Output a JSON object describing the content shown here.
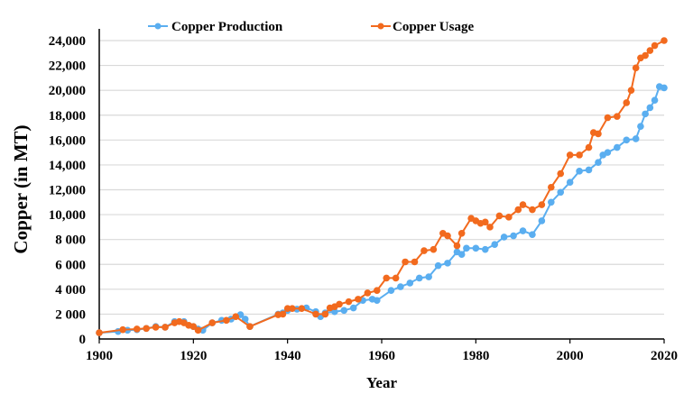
{
  "chart_data": {
    "type": "line",
    "title": "",
    "xlabel": "Year",
    "ylabel": "Copper (in MT)",
    "xlim": [
      1900,
      2020
    ],
    "ylim": [
      0,
      24000
    ],
    "grid": true,
    "legend_position": "top-center",
    "x_ticks": [
      "1900",
      "1920",
      "1940",
      "1960",
      "1980",
      "2000",
      "2020"
    ],
    "x_tick_values": [
      1900,
      1920,
      1940,
      1960,
      1980,
      2000,
      2020
    ],
    "y_ticks": [
      "0",
      "2 000",
      "4 000",
      "6 000",
      "8 000",
      "10,000",
      "12,000",
      "14,000",
      "16,000",
      "18,000",
      "20,000",
      "22,000",
      "24,000"
    ],
    "y_tick_values": [
      0,
      2000,
      4000,
      6000,
      8000,
      10000,
      12000,
      14000,
      16000,
      18000,
      20000,
      22000,
      24000
    ],
    "series": [
      {
        "name": "Copper Production",
        "color": "#5aaef0",
        "x": [
          1900,
          1904,
          1906,
          1908,
          1910,
          1912,
          1914,
          1916,
          1918,
          1920,
          1921,
          1922,
          1924,
          1926,
          1928,
          1930,
          1931,
          1932,
          1938,
          1939,
          1940,
          1942,
          1944,
          1946,
          1947,
          1948,
          1950,
          1952,
          1954,
          1956,
          1958,
          1959,
          1962,
          1964,
          1966,
          1968,
          1970,
          1972,
          1974,
          1976,
          1977,
          1978,
          1980,
          1982,
          1984,
          1986,
          1988,
          1990,
          1992,
          1994,
          1996,
          1998,
          2000,
          2002,
          2004,
          2006,
          2007,
          2008,
          2010,
          2012,
          2014,
          2015,
          2016,
          2017,
          2018,
          2019,
          2020
        ],
        "values": [
          500,
          600,
          700,
          750,
          850,
          1000,
          950,
          1400,
          1400,
          1000,
          800,
          700,
          1300,
          1500,
          1600,
          1950,
          1600,
          1000,
          2000,
          2100,
          2300,
          2400,
          2500,
          2200,
          1800,
          2100,
          2200,
          2300,
          2500,
          3100,
          3200,
          3100,
          3900,
          4200,
          4500,
          4900,
          5000,
          5900,
          6100,
          7000,
          6800,
          7300,
          7300,
          7200,
          7600,
          8200,
          8300,
          8700,
          8400,
          9500,
          11000,
          11800,
          12600,
          13500,
          13600,
          14200,
          14800,
          15000,
          15400,
          16000,
          16100,
          17100,
          18100,
          18600,
          19200,
          20300,
          20200
        ]
      },
      {
        "name": "Copper Usage",
        "color": "#f26a1e",
        "x": [
          1900,
          1905,
          1908,
          1910,
          1912,
          1914,
          1916,
          1917,
          1918,
          1919,
          1920,
          1921,
          1924,
          1927,
          1929,
          1932,
          1938,
          1939,
          1940,
          1941,
          1943,
          1946,
          1948,
          1949,
          1950,
          1951,
          1953,
          1955,
          1957,
          1959,
          1961,
          1963,
          1965,
          1967,
          1969,
          1971,
          1973,
          1974,
          1976,
          1977,
          1979,
          1980,
          1981,
          1982,
          1983,
          1985,
          1987,
          1989,
          1990,
          1992,
          1994,
          1996,
          1998,
          2000,
          2002,
          2004,
          2005,
          2006,
          2008,
          2010,
          2012,
          2013,
          2014,
          2015,
          2016,
          2017,
          2018,
          2020
        ],
        "values": [
          500,
          750,
          800,
          850,
          950,
          950,
          1300,
          1400,
          1300,
          1100,
          1000,
          700,
          1300,
          1500,
          1800,
          1000,
          1950,
          2000,
          2450,
          2450,
          2450,
          2000,
          2000,
          2500,
          2600,
          2800,
          3000,
          3200,
          3700,
          3900,
          4900,
          4900,
          6200,
          6200,
          7100,
          7200,
          8500,
          8300,
          7500,
          8500,
          9700,
          9500,
          9300,
          9400,
          9000,
          9900,
          9800,
          10400,
          10800,
          10400,
          10800,
          12200,
          13300,
          14800,
          14800,
          15400,
          16600,
          16500,
          17800,
          17900,
          19000,
          20000,
          21800,
          22600,
          22800,
          23200,
          23600,
          24000
        ]
      }
    ]
  }
}
